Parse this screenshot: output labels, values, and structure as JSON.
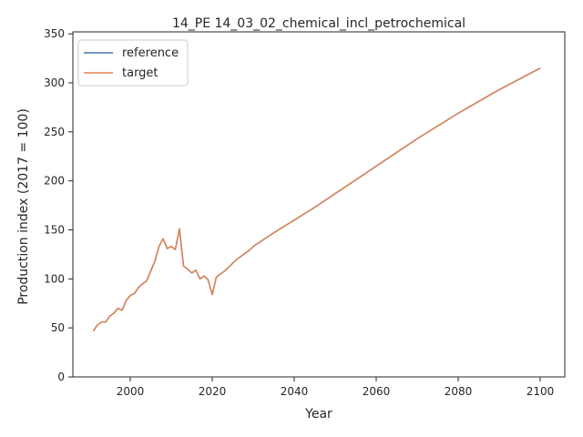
{
  "chart_data": {
    "type": "line",
    "title": "14_PE 14_03_02_chemical_incl_petrochemical",
    "xlabel": "Year",
    "ylabel": "Production index (2017 = 100)",
    "xlim": [
      1986,
      2106
    ],
    "ylim": [
      0,
      352
    ],
    "xticks": [
      2000,
      2020,
      2040,
      2060,
      2080,
      2100
    ],
    "yticks": [
      0,
      50,
      100,
      150,
      200,
      250,
      300,
      350
    ],
    "grid": false,
    "legend_position": "top-left",
    "series": [
      {
        "name": "reference",
        "color": "#4c72b0",
        "x": [
          1991,
          1992,
          1993,
          1994,
          1995,
          1996,
          1997,
          1998,
          1999,
          2000,
          2001,
          2002,
          2003,
          2004,
          2005,
          2006,
          2007,
          2008,
          2009,
          2010,
          2011,
          2012,
          2013,
          2014,
          2015,
          2016,
          2017,
          2018,
          2019,
          2020,
          2021,
          2022,
          2023,
          2024,
          2025,
          2026,
          2027,
          2028,
          2029,
          2030,
          2031,
          2035,
          2040,
          2045,
          2050,
          2055,
          2060,
          2065,
          2070,
          2075,
          2080,
          2085,
          2090,
          2095,
          2100
        ],
        "y": [
          47,
          53,
          56,
          56,
          62,
          65,
          70,
          68,
          78,
          83,
          85,
          91,
          95,
          98,
          108,
          118,
          133,
          141,
          131,
          133,
          130,
          151,
          113,
          110,
          106,
          109,
          100,
          103,
          99,
          84,
          102,
          105,
          108,
          112,
          116,
          120,
          123,
          126,
          129,
          133,
          136,
          147,
          160,
          173,
          187,
          201,
          215,
          229,
          243,
          256,
          269,
          281,
          293,
          304,
          315
        ]
      },
      {
        "name": "target",
        "color": "#dd8452",
        "x": [
          1991,
          1992,
          1993,
          1994,
          1995,
          1996,
          1997,
          1998,
          1999,
          2000,
          2001,
          2002,
          2003,
          2004,
          2005,
          2006,
          2007,
          2008,
          2009,
          2010,
          2011,
          2012,
          2013,
          2014,
          2015,
          2016,
          2017,
          2018,
          2019,
          2020,
          2021,
          2022,
          2023,
          2024,
          2025,
          2026,
          2027,
          2028,
          2029,
          2030,
          2031,
          2035,
          2040,
          2045,
          2050,
          2055,
          2060,
          2065,
          2070,
          2075,
          2080,
          2085,
          2090,
          2095,
          2100
        ],
        "y": [
          47,
          53,
          56,
          56,
          62,
          65,
          70,
          68,
          78,
          83,
          85,
          91,
          95,
          98,
          108,
          118,
          133,
          141,
          131,
          133,
          130,
          151,
          113,
          110,
          106,
          109,
          100,
          103,
          99,
          84,
          102,
          105,
          108,
          112,
          116,
          120,
          123,
          126,
          129,
          133,
          136,
          147,
          160,
          173,
          187,
          201,
          215,
          229,
          243,
          256,
          269,
          281,
          293,
          304,
          315
        ]
      }
    ]
  }
}
